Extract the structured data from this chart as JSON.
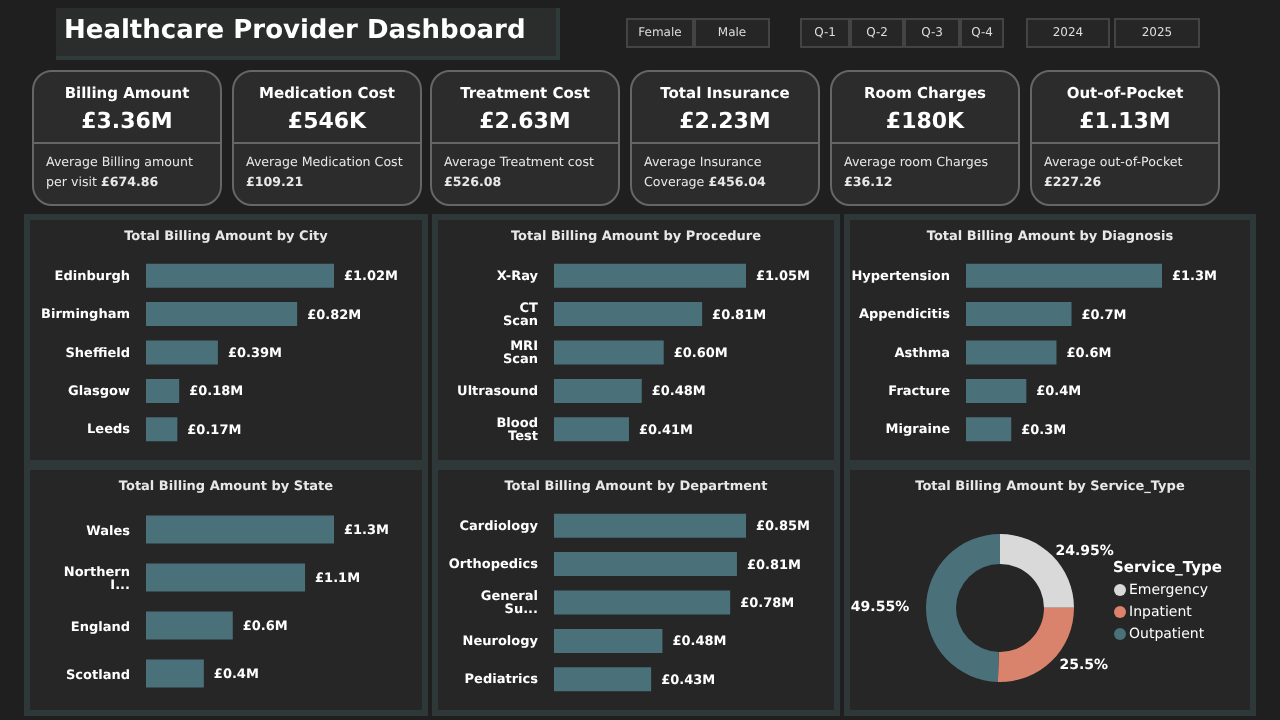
{
  "chart_data": [
    {
      "type": "other",
      "title": "Healthcare Provider Dashboard",
      "annotations": [
        "Female",
        "Male",
        "Q-1",
        "Q-2",
        "Q-3",
        "Q-4",
        "2024",
        "2025"
      ]
    },
    {
      "type": "other",
      "title": "Billing Amount",
      "annotations": [
        "£3.36M",
        "Average Billing amount per visit",
        "£674.86"
      ]
    },
    {
      "type": "other",
      "title": "Medication Cost",
      "annotations": [
        "£546K",
        "Average Medication Cost",
        "£109.21"
      ]
    },
    {
      "type": "other",
      "title": "Treatment Cost",
      "annotations": [
        "£2.63M",
        "Average Treatment cost",
        "£526.08"
      ]
    },
    {
      "type": "other",
      "title": "Total Insurance",
      "annotations": [
        "£2.23M",
        "Average Insurance Coverage",
        "£456.04"
      ]
    },
    {
      "type": "other",
      "title": "Room Charges",
      "annotations": [
        "£180K",
        "Average room Charges",
        "£36.12"
      ]
    },
    {
      "type": "other",
      "title": "Out-of-Pocket",
      "annotations": [
        "£1.13M",
        "Average out-of-Pocket",
        "£227.26"
      ]
    },
    {
      "type": "bar",
      "orientation": "horizontal",
      "title": "Total Billing Amount by City",
      "categories": [
        "Edinburgh",
        "Birmingham",
        "Sheffield",
        "Glasgow",
        "Leeds"
      ],
      "values": [
        1.02,
        0.82,
        0.39,
        0.18,
        0.17
      ],
      "value_labels": [
        "£1.02M",
        "£0.82M",
        "£0.39M",
        "£0.18M",
        "£0.17M"
      ],
      "color": "#4a707a"
    },
    {
      "type": "bar",
      "orientation": "horizontal",
      "title": "Total Billing Amount by Procedure",
      "categories": [
        "X-Ray",
        "CT Scan",
        "MRI Scan",
        "Ultrasound",
        "Blood Test"
      ],
      "values": [
        1.05,
        0.81,
        0.6,
        0.48,
        0.41
      ],
      "value_labels": [
        "£1.05M",
        "£0.81M",
        "£0.60M",
        "£0.48M",
        "£0.41M"
      ],
      "color": "#4a707a"
    },
    {
      "type": "bar",
      "orientation": "horizontal",
      "title": "Total Billing Amount by Diagnosis",
      "categories": [
        "Hypertension",
        "Appendicitis",
        "Asthma",
        "Fracture",
        "Migraine"
      ],
      "values": [
        1.3,
        0.7,
        0.6,
        0.4,
        0.3
      ],
      "value_labels": [
        "£1.3M",
        "£0.7M",
        "£0.6M",
        "£0.4M",
        "£0.3M"
      ],
      "color": "#4a707a"
    },
    {
      "type": "bar",
      "orientation": "horizontal",
      "title": "Total Billing Amount by State",
      "categories": [
        "Wales",
        "Northern I...",
        "England",
        "Scotland"
      ],
      "values": [
        1.3,
        1.1,
        0.6,
        0.4
      ],
      "value_labels": [
        "£1.3M",
        "£1.1M",
        "£0.6M",
        "£0.4M"
      ],
      "color": "#4a707a"
    },
    {
      "type": "bar",
      "orientation": "horizontal",
      "title": "Total Billing Amount by Department",
      "categories": [
        "Cardiology",
        "Orthopedics",
        "General Su...",
        "Neurology",
        "Pediatrics"
      ],
      "values": [
        0.85,
        0.81,
        0.78,
        0.48,
        0.43
      ],
      "value_labels": [
        "£0.85M",
        "£0.81M",
        "£0.78M",
        "£0.48M",
        "£0.43M"
      ],
      "color": "#4a707a"
    },
    {
      "type": "donut",
      "title": "Total Billing Amount by Service_Type",
      "categories": [
        "Emergency",
        "Inpatient",
        "Outpatient"
      ],
      "values": [
        24.95,
        25.5,
        49.55
      ],
      "value_labels": [
        "24.95%",
        "25.5%",
        "49.55%"
      ],
      "colors": [
        "#d9d9d9",
        "#d9826c",
        "#4a707a"
      ],
      "legend": "right",
      "legend_title": "Service_Type"
    }
  ]
}
